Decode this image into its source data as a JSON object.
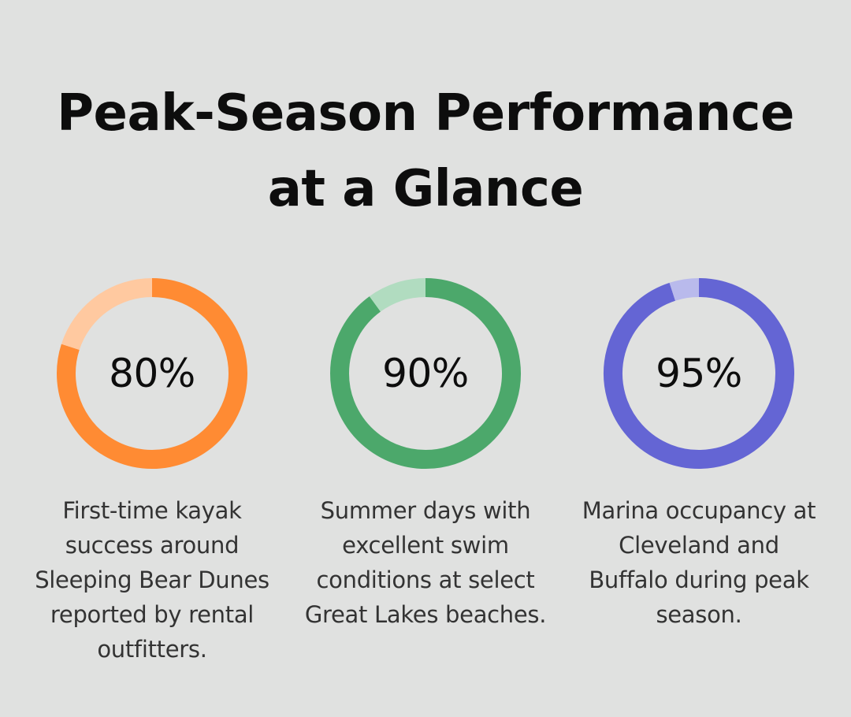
{
  "title_lines": [
    "Peak-Season Performance",
    "at a Glance"
  ],
  "chart_data": [
    {
      "type": "pie",
      "style": "donut",
      "value_label": "80%",
      "values": [
        80,
        20
      ],
      "colors": [
        "#ff8b33",
        "#ffc9a0"
      ],
      "description_lines": [
        "First-time kayak",
        "success around",
        "Sleeping Bear Dunes",
        "reported by rental",
        "outfitters."
      ]
    },
    {
      "type": "pie",
      "style": "donut",
      "value_label": "90%",
      "values": [
        90,
        10
      ],
      "colors": [
        "#4ca86b",
        "#b1dcc0"
      ],
      "description_lines": [
        "Summer days with",
        "excellent swim",
        "conditions at select",
        "Great Lakes beaches."
      ]
    },
    {
      "type": "pie",
      "style": "donut",
      "value_label": "95%",
      "values": [
        95,
        5
      ],
      "colors": [
        "#6465d4",
        "#b9baec"
      ],
      "description_lines": [
        "Marina occupancy at",
        "Cleveland and",
        "Buffalo during peak",
        "season."
      ]
    }
  ]
}
